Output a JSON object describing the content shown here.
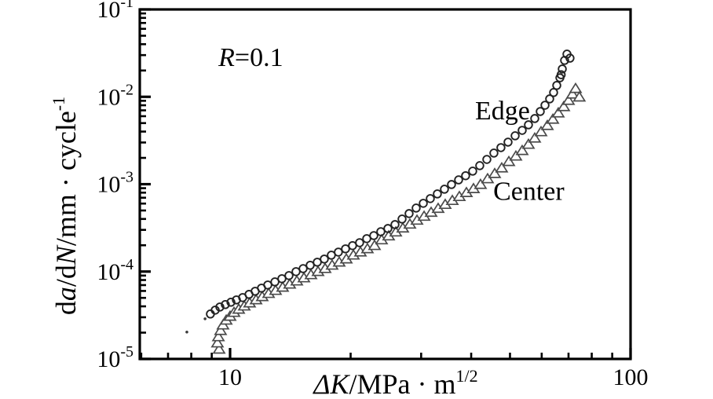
{
  "figure": {
    "background": "#ffffff"
  },
  "chart_data": {
    "type": "scatter",
    "title": "",
    "xlabel": "ΔK/MPa·m^(1/2)",
    "ylabel": "da/dN/mm·cycle^(-1)",
    "x_axis": {
      "scale": "log",
      "range": [
        5.95,
        100.5
      ],
      "label_parts": [
        {
          "t": "Δ",
          "i": true
        },
        {
          "t": "K",
          "i": true
        },
        {
          "t": "/MPa · m"
        },
        {
          "t": "1/2",
          "sup": true
        }
      ],
      "major_ticks": [
        {
          "value": 10,
          "label": "10"
        },
        {
          "value": 100,
          "label": "100"
        }
      ],
      "minor_ticks": [
        6,
        7,
        8,
        9,
        20,
        30,
        40,
        50,
        60,
        70,
        80,
        90
      ]
    },
    "y_axis": {
      "scale": "log",
      "range": [
        1e-05,
        0.1
      ],
      "label_parts": [
        {
          "t": "d"
        },
        {
          "t": "a",
          "i": true
        },
        {
          "t": "/d"
        },
        {
          "t": "N",
          "i": true
        },
        {
          "t": "/mm · cycle"
        },
        {
          "t": "-1",
          "sup": true
        }
      ],
      "major_ticks": [
        {
          "value": 0.1,
          "base": "10",
          "exp": "-1"
        },
        {
          "value": 0.01,
          "base": "10",
          "exp": "-2"
        },
        {
          "value": 0.001,
          "base": "10",
          "exp": "-3"
        },
        {
          "value": 0.0001,
          "base": "10",
          "exp": "-4"
        },
        {
          "value": 1e-05,
          "base": "10",
          "exp": "-5"
        }
      ],
      "minor_mantissas": [
        2,
        3,
        4,
        5,
        6,
        7,
        8,
        9
      ],
      "minor_decades": [
        -5,
        -4,
        -3,
        -2
      ]
    },
    "annotations": [
      {
        "name": "stress-ratio-label",
        "text": "R=0.1",
        "parts": [
          {
            "t": "R",
            "i": true
          },
          {
            "t": "=0.1"
          }
        ],
        "x": 9.35,
        "y": 0.0225,
        "anchor": "start"
      },
      {
        "name": "edge-series-label",
        "text": "Edge",
        "parts": [
          {
            "t": "Edge"
          }
        ],
        "x": 40.9,
        "y": 0.0055,
        "anchor": "start"
      },
      {
        "name": "center-series-label",
        "text": "Center",
        "parts": [
          {
            "t": "Center"
          }
        ],
        "x": 45.4,
        "y": 0.00066,
        "anchor": "start"
      }
    ],
    "series": [
      {
        "name": "Edge",
        "marker": "circle",
        "color": "#222222",
        "points": [
          [
            8.93,
            3.27e-05
          ],
          [
            9.18,
            3.62e-05
          ],
          [
            9.43,
            3.93e-05
          ],
          [
            9.73,
            4.19e-05
          ],
          [
            10.05,
            4.46e-05
          ],
          [
            10.37,
            4.74e-05
          ],
          [
            10.75,
            5.04e-05
          ],
          [
            11.15,
            5.48e-05
          ],
          [
            11.55,
            5.95e-05
          ],
          [
            11.98,
            6.46e-05
          ],
          [
            12.42,
            7.02e-05
          ],
          [
            12.94,
            7.62e-05
          ],
          [
            13.47,
            8.28e-05
          ],
          [
            14.03,
            9e-05
          ],
          [
            14.61,
            9.98e-05
          ],
          [
            15.22,
            0.000108
          ],
          [
            15.85,
            0.000118
          ],
          [
            16.51,
            0.000128
          ],
          [
            17.19,
            0.000139
          ],
          [
            17.9,
            0.000154
          ],
          [
            18.64,
            0.000167
          ],
          [
            19.42,
            0.000182
          ],
          [
            20.22,
            0.000198
          ],
          [
            21.06,
            0.000214
          ],
          [
            21.94,
            0.000238
          ],
          [
            22.85,
            0.000258
          ],
          [
            23.79,
            0.000286
          ],
          [
            24.78,
            0.000311
          ],
          [
            25.81,
            0.000345
          ],
          [
            26.88,
            0.000399
          ],
          [
            27.99,
            0.000461
          ],
          [
            29.15,
            0.000533
          ],
          [
            30.37,
            0.000604
          ],
          [
            31.62,
            0.000684
          ],
          [
            32.93,
            0.000774
          ],
          [
            34.3,
            0.000876
          ],
          [
            35.72,
            0.000991
          ],
          [
            37.21,
            0.00112
          ],
          [
            38.74,
            0.00125
          ],
          [
            40.35,
            0.00141
          ],
          [
            42.02,
            0.00163
          ],
          [
            43.77,
            0.00192
          ],
          [
            45.58,
            0.00227
          ],
          [
            47.46,
            0.00262
          ],
          [
            49.44,
            0.00303
          ],
          [
            51.5,
            0.00358
          ],
          [
            53.63,
            0.00413
          ],
          [
            55.6,
            0.00478
          ],
          [
            57.65,
            0.00564
          ],
          [
            59.5,
            0.00679
          ],
          [
            61.15,
            0.00801
          ],
          [
            62.81,
            0.00946
          ],
          [
            64.25,
            0.0112
          ],
          [
            65.43,
            0.0135
          ],
          [
            66.62,
            0.0165
          ],
          [
            67.1,
            0.0179
          ],
          [
            67.53,
            0.0208
          ],
          [
            68.44,
            0.0261
          ],
          [
            70.6,
            0.0277
          ],
          [
            69.38,
            0.0308
          ]
        ]
      },
      {
        "name": "Center",
        "marker": "triangle",
        "color": "#4a4a4a",
        "points": [
          [
            9.39,
            1.29e-05
          ],
          [
            9.3,
            1.52e-05
          ],
          [
            9.35,
            1.79e-05
          ],
          [
            9.47,
            2.11e-05
          ],
          [
            9.6,
            2.44e-05
          ],
          [
            9.78,
            2.77e-05
          ],
          [
            10.0,
            3.07e-05
          ],
          [
            10.23,
            3.4e-05
          ],
          [
            10.51,
            3.7e-05
          ],
          [
            10.85,
            4.02e-05
          ],
          [
            11.19,
            4.36e-05
          ],
          [
            11.61,
            4.74e-05
          ],
          [
            12.03,
            5.15e-05
          ],
          [
            12.48,
            5.6e-05
          ],
          [
            12.99,
            6.07e-05
          ],
          [
            13.53,
            6.6e-05
          ],
          [
            14.09,
            7.16e-05
          ],
          [
            14.68,
            7.78e-05
          ],
          [
            15.29,
            8.45e-05
          ],
          [
            15.92,
            9.18e-05
          ],
          [
            16.58,
            9.98e-05
          ],
          [
            17.27,
            0.000108
          ],
          [
            17.98,
            0.000118
          ],
          [
            18.73,
            0.000128
          ],
          [
            19.51,
            0.000139
          ],
          [
            20.32,
            0.000154
          ],
          [
            21.16,
            0.000167
          ],
          [
            22.03,
            0.000182
          ],
          [
            22.95,
            0.000198
          ],
          [
            23.9,
            0.00023
          ],
          [
            24.89,
            0.000255
          ],
          [
            25.93,
            0.000283
          ],
          [
            27.0,
            0.000314
          ],
          [
            28.12,
            0.000348
          ],
          [
            29.29,
            0.000386
          ],
          [
            30.51,
            0.000428
          ],
          [
            31.77,
            0.000475
          ],
          [
            33.08,
            0.000527
          ],
          [
            34.45,
            0.000585
          ],
          [
            35.89,
            0.000649
          ],
          [
            37.37,
            0.00072
          ],
          [
            38.92,
            0.000799
          ],
          [
            40.54,
            0.000887
          ],
          [
            42.21,
            0.000991
          ],
          [
            43.96,
            0.00115
          ],
          [
            45.79,
            0.00132
          ],
          [
            47.68,
            0.00153
          ],
          [
            49.67,
            0.00181
          ],
          [
            51.72,
            0.00209
          ],
          [
            53.63,
            0.00242
          ],
          [
            55.6,
            0.00285
          ],
          [
            57.64,
            0.00336
          ],
          [
            59.77,
            0.00397
          ],
          [
            61.98,
            0.00468
          ],
          [
            63.97,
            0.00552
          ],
          [
            66.01,
            0.00652
          ],
          [
            68.12,
            0.00769
          ],
          [
            70.0,
            0.00907
          ],
          [
            71.59,
            0.0107
          ],
          [
            72.9,
            0.0124
          ],
          [
            74.5,
            0.0099
          ]
        ]
      }
    ],
    "stray_dots": [
      [
        7.8,
        2.03e-05
      ],
      [
        8.66,
        2.88e-05
      ]
    ],
    "colors": {
      "axis": "#000000",
      "text": "#000000"
    }
  }
}
